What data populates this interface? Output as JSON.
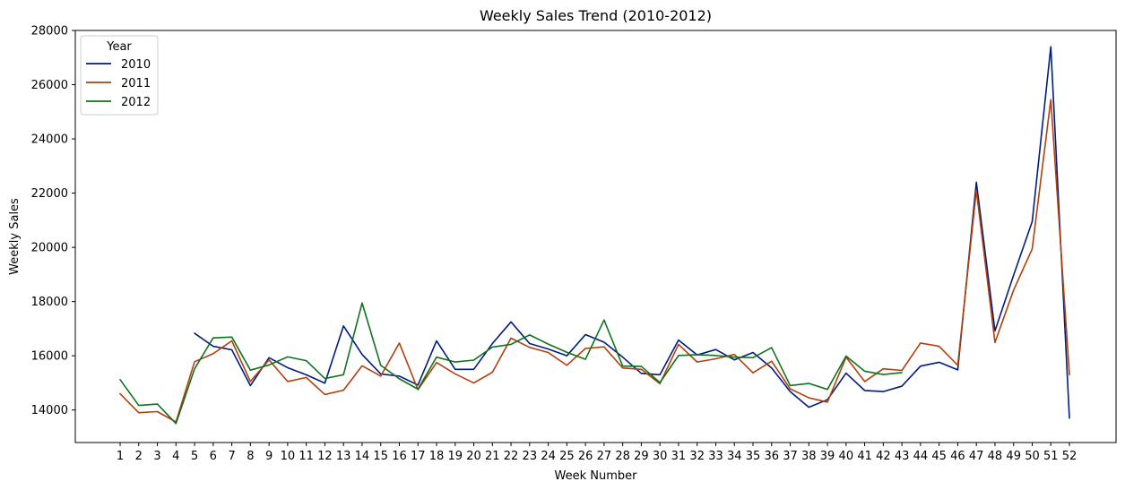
{
  "chart_data": {
    "type": "line",
    "title": "Weekly Sales Trend (2010-2012)",
    "xlabel": "Week Number",
    "ylabel": "Weekly Sales",
    "x": [
      1,
      2,
      3,
      4,
      5,
      6,
      7,
      8,
      9,
      10,
      11,
      12,
      13,
      14,
      15,
      16,
      17,
      18,
      19,
      20,
      21,
      22,
      23,
      24,
      25,
      26,
      27,
      28,
      29,
      30,
      31,
      32,
      33,
      34,
      35,
      36,
      37,
      38,
      39,
      40,
      41,
      42,
      43,
      44,
      45,
      46,
      47,
      48,
      49,
      50,
      51,
      52
    ],
    "ylim": [
      12800,
      28000
    ],
    "yticks": [
      14000,
      16000,
      18000,
      20000,
      22000,
      24000,
      26000,
      28000
    ],
    "grid": false,
    "legend": {
      "title": "Year",
      "placement": "top-left"
    },
    "series": [
      {
        "name": "2010",
        "color": "#001c7f",
        "x": [
          5,
          6,
          7,
          8,
          9,
          10,
          11,
          12,
          13,
          14,
          15,
          16,
          17,
          18,
          19,
          20,
          21,
          22,
          23,
          24,
          25,
          26,
          27,
          28,
          29,
          30,
          31,
          32,
          33,
          34,
          35,
          36,
          37,
          38,
          39,
          40,
          41,
          42,
          43,
          44,
          45,
          46,
          47,
          48,
          49,
          50,
          51,
          52
        ],
        "values": [
          16830,
          16350,
          16220,
          14900,
          15930,
          15560,
          15300,
          14990,
          17100,
          16050,
          15330,
          15250,
          14920,
          16550,
          15500,
          15500,
          16450,
          17250,
          16450,
          16250,
          16000,
          16780,
          16500,
          15950,
          15350,
          15300,
          16580,
          16030,
          16230,
          15850,
          16120,
          15550,
          14680,
          14100,
          14380,
          15360,
          14720,
          14680,
          14880,
          15620,
          15760,
          15480,
          22400,
          16920,
          18970,
          20950,
          27400,
          13700
        ]
      },
      {
        "name": "2011",
        "color": "#b1400d",
        "x": [
          1,
          2,
          3,
          4,
          5,
          6,
          7,
          8,
          9,
          10,
          11,
          12,
          13,
          14,
          15,
          16,
          17,
          18,
          19,
          20,
          21,
          22,
          23,
          24,
          25,
          26,
          27,
          28,
          29,
          30,
          31,
          32,
          33,
          34,
          35,
          36,
          37,
          38,
          39,
          40,
          41,
          42,
          43,
          44,
          45,
          46,
          47,
          48,
          49,
          50,
          51,
          52
        ],
        "values": [
          14600,
          13900,
          13940,
          13560,
          15780,
          16080,
          16550,
          15050,
          15850,
          15050,
          15200,
          14570,
          14730,
          15630,
          15250,
          16470,
          14750,
          15750,
          15330,
          15000,
          15390,
          16650,
          16310,
          16120,
          15650,
          16270,
          16330,
          15550,
          15500,
          14970,
          16420,
          15770,
          15890,
          16050,
          15370,
          15800,
          14780,
          14450,
          14290,
          15950,
          15050,
          15520,
          15460,
          16470,
          16350,
          15650,
          22100,
          16490,
          18420,
          19940,
          25450,
          15300
        ]
      },
      {
        "name": "2012",
        "color": "#12711c",
        "x": [
          1,
          2,
          3,
          4,
          5,
          6,
          7,
          8,
          9,
          10,
          11,
          12,
          13,
          14,
          15,
          16,
          17,
          18,
          19,
          20,
          21,
          22,
          23,
          24,
          25,
          26,
          27,
          28,
          29,
          30,
          31,
          32,
          33,
          34,
          35,
          36,
          37,
          38,
          39,
          40,
          41,
          42,
          43
        ],
        "values": [
          15120,
          14170,
          14220,
          13500,
          15520,
          16660,
          16690,
          15470,
          15660,
          15960,
          15820,
          15160,
          15300,
          17950,
          15650,
          15150,
          14770,
          15950,
          15770,
          15840,
          16320,
          16420,
          16770,
          16430,
          16130,
          15870,
          17320,
          15620,
          15610,
          15010,
          16010,
          16040,
          16010,
          15950,
          15930,
          16300,
          14900,
          14980,
          14760,
          15990,
          15430,
          15310,
          15380
        ]
      }
    ]
  }
}
